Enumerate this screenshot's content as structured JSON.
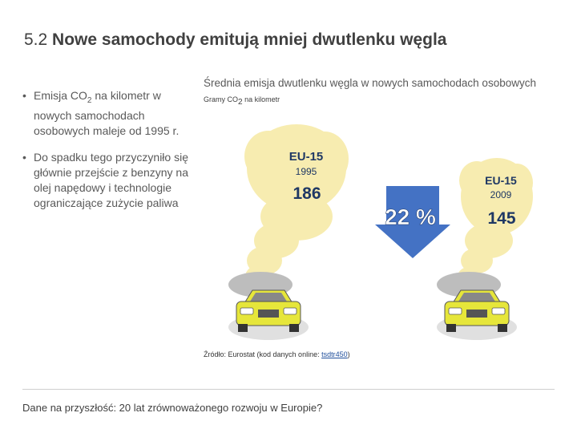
{
  "slide": {
    "number": "5.2",
    "title": "Nowe samochody emitują mniej dwutlenku węgla"
  },
  "bullets": [
    {
      "pre": "Emisja CO",
      "sub": "2",
      "post": " na kilometr w nowych samochodach osobowych maleje od 1995 r."
    },
    {
      "pre": "Do spadku tego przyczyniło się głównie przejście z benzyny na olej napędowy i technologie ograniczające zużycie paliwa",
      "sub": "",
      "post": ""
    }
  ],
  "chart": {
    "title": "Średnia emisja dwutlenku węgla w nowych samochodach osobowych",
    "unit_pre": "Gramy CO",
    "unit_sub": "2",
    "unit_post": " na kilometr",
    "left": {
      "region": "EU-15",
      "year": "1995",
      "value": "186"
    },
    "right": {
      "region": "EU-15",
      "year": "2009",
      "value": "145"
    },
    "reduction": "22 %",
    "source_pre": "Źródło: Eurostat (kod danych online: ",
    "source_link": "tsdtr450",
    "source_post": ")"
  },
  "colors": {
    "smoke": "#f7ecb0",
    "arrow": "#4472c4",
    "car": "#e6e63a",
    "label_blue": "#1f3864"
  },
  "footer": "Dane na przyszłość: 20 lat zrównoważonego rozwoju w Europie?"
}
